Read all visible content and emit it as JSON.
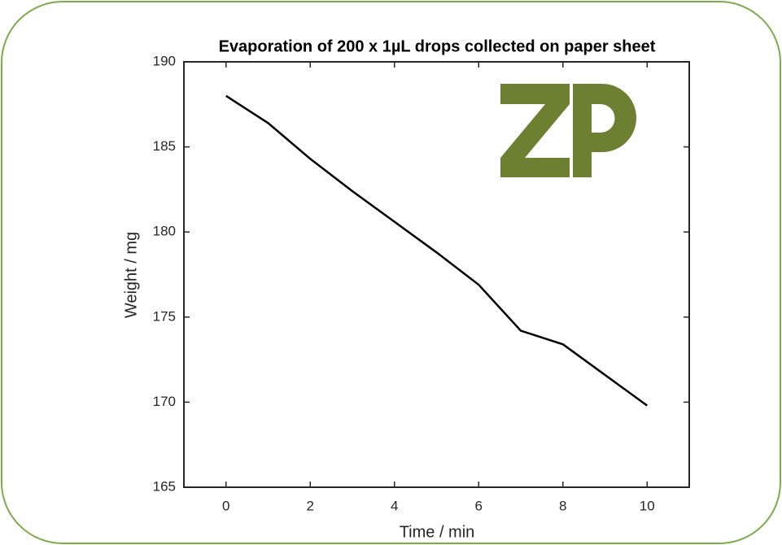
{
  "chart_data": {
    "type": "line",
    "title": "Evaporation of 200 x 1µL drops collected on paper sheet",
    "x_label": "Time / min",
    "y_label": "Weight / mg",
    "x": [
      0,
      1,
      2,
      3,
      4,
      5,
      6,
      7,
      8,
      9,
      10
    ],
    "series": [
      {
        "color": "#000000",
        "values": [
          188,
          186.4,
          184.3,
          182.4,
          180.6,
          178.8,
          176.9,
          174.2,
          173.4,
          171.6,
          169.8
        ]
      }
    ],
    "xlim": [
      -1,
      11
    ],
    "xticks": [
      0,
      2,
      4,
      6,
      8,
      10
    ],
    "ylim": [
      165,
      190
    ],
    "yticks": [
      165,
      170,
      175,
      180,
      185,
      190
    ]
  }
}
